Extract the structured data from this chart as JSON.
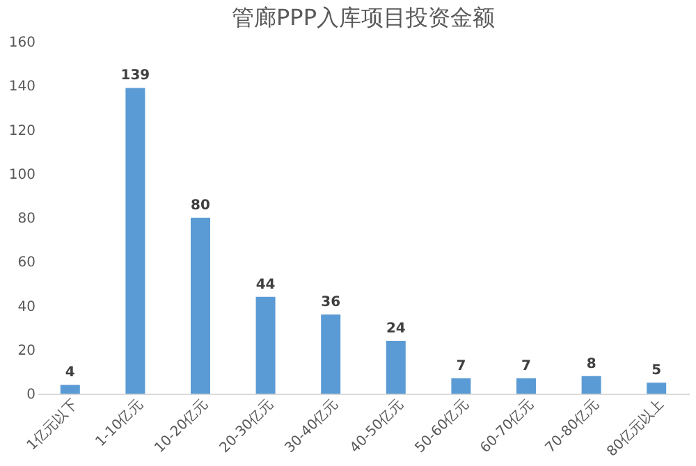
{
  "chart_data": {
    "type": "bar",
    "title": "管廊PPP入库项目投资金额",
    "categories": [
      "1亿元以下",
      "1-10亿元",
      "10-20亿元",
      "20-30亿元",
      "30-40亿元",
      "40-50亿元",
      "50-60亿元",
      "60-70亿元",
      "70-80亿元",
      "80亿元以上"
    ],
    "values": [
      4,
      139,
      80,
      44,
      36,
      24,
      7,
      7,
      8,
      5
    ],
    "color": "#5b9bd5",
    "ylim": [
      0,
      160
    ],
    "yticks": [
      0,
      20,
      40,
      60,
      80,
      100,
      120,
      140,
      160
    ],
    "grid": false,
    "data_labels": true
  }
}
